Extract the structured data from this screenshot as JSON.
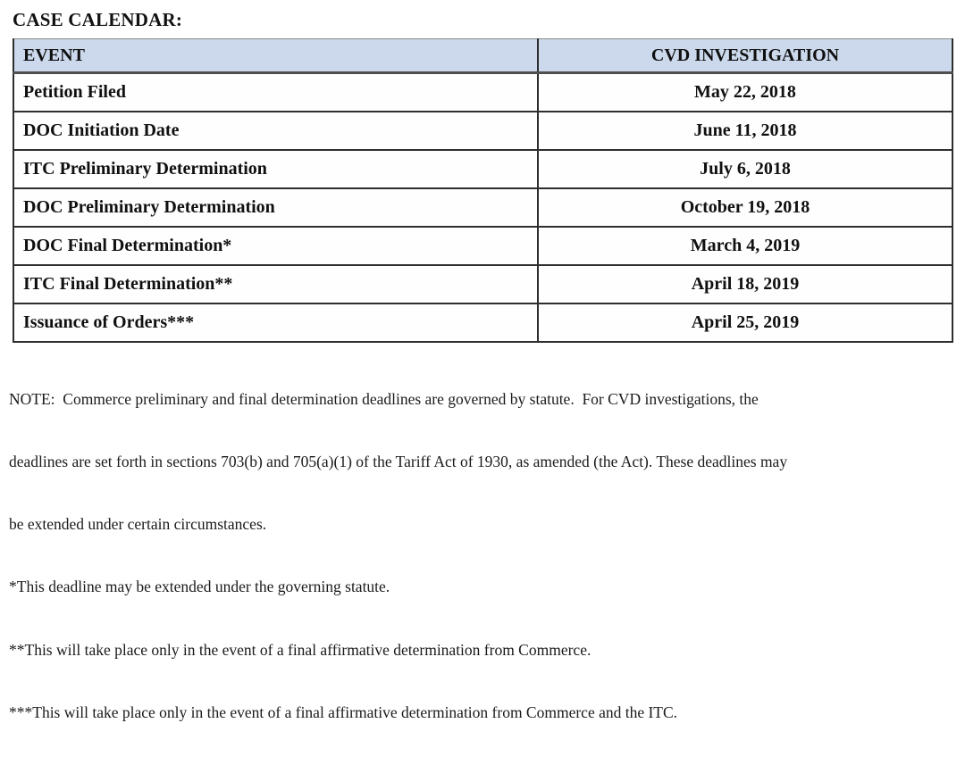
{
  "title": "CASE CALENDAR:",
  "table": {
    "columns": {
      "event": "EVENT",
      "investigation": "CVD INVESTIGATION"
    },
    "rows": [
      {
        "event": "Petition Filed",
        "date": "May 22, 2018"
      },
      {
        "event": "DOC Initiation Date",
        "date": "June 11, 2018"
      },
      {
        "event": "ITC Preliminary Determination",
        "date": "July 6, 2018"
      },
      {
        "event": "DOC Preliminary Determination",
        "date": "October 19, 2018"
      },
      {
        "event": "DOC Final Determination*",
        "date": "March 4, 2019"
      },
      {
        "event": "ITC Final Determination**",
        "date": "April 18, 2019"
      },
      {
        "event": "Issuance of Orders***",
        "date": "April 25, 2019"
      }
    ]
  },
  "note_lines": [
    "NOTE:  Commerce preliminary and final determination deadlines are governed by statute.  For CVD investigations, the",
    "deadlines are set forth in sections 703(b) and 705(a)(1) of the Tariff Act of 1930, as amended (the Act). These deadlines may",
    "be extended under certain circumstances."
  ],
  "footnotes": [
    "*This deadline may be extended under the governing statute.",
    "**This will take place only in the event of a final affirmative determination from Commerce.",
    "***This will take place only in the event of a final affirmative determination from Commerce and the ITC."
  ],
  "colors": {
    "header_bg": "#ccd9ec",
    "grid_border": "#2e2e2e",
    "text": "#141414"
  }
}
